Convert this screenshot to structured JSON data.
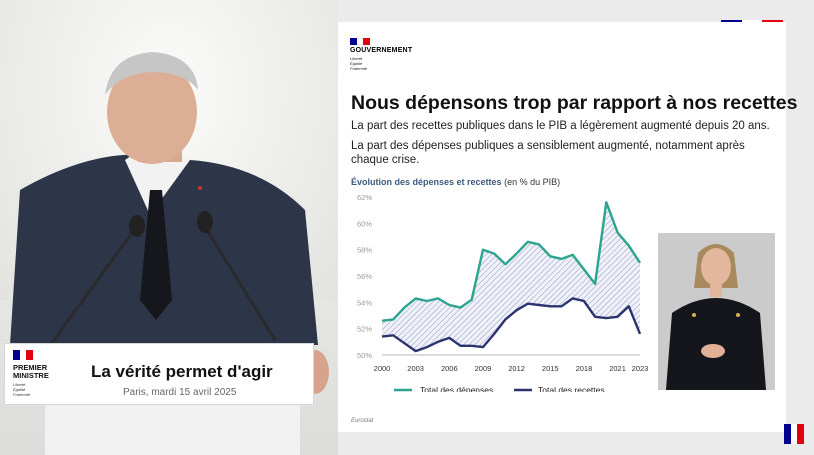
{
  "stage": {
    "podium": {
      "logo_title": "PREMIER\nMINISTRE",
      "logo_motto": "Liberté\nÉgalité\nFraternité",
      "headline": "La vérité permet d'agir",
      "subline": "Paris, mardi 15 avril 2025"
    }
  },
  "slide": {
    "gov_name": "GOUVERNEMENT",
    "gov_motto": "Liberté\nÉgalité\nFraternité",
    "title": "Nous dépensons trop par rapport à nos recettes",
    "paragraph1": "La part des recettes publiques dans le PIB a légèrement augmenté depuis 20 ans.",
    "paragraph2": "La part des dépenses publiques a sensiblement augmenté, notamment après chaque crise.",
    "chart_title_bold": "Évolution des dépenses et recettes",
    "chart_title_unit": "(en % du PIB)",
    "source": "Eurostat"
  },
  "colors": {
    "depenses": "#2ba58f",
    "recettes": "#2c3470",
    "hatch": "#4a5aa8",
    "flag_blue": "#000091",
    "flag_red": "#e1000f",
    "title_blue": "#3d5a80"
  },
  "chart_data": {
    "type": "line",
    "title": "Évolution des dépenses et recettes (en % du PIB)",
    "x": [
      2000,
      2001,
      2002,
      2003,
      2004,
      2005,
      2006,
      2007,
      2008,
      2009,
      2010,
      2011,
      2012,
      2013,
      2014,
      2015,
      2016,
      2017,
      2018,
      2019,
      2020,
      2021,
      2022,
      2023
    ],
    "xticks": [
      "2000",
      "2003",
      "2006",
      "2009",
      "2012",
      "2015",
      "2018",
      "2021",
      "2023"
    ],
    "yticks": [
      "50%",
      "52%",
      "54%",
      "56%",
      "58%",
      "60%",
      "62%"
    ],
    "ylim": [
      50,
      62
    ],
    "series": [
      {
        "name": "Total des dépenses",
        "values": [
          52.6,
          52.7,
          53.6,
          54.3,
          54.1,
          54.3,
          53.8,
          53.6,
          54.2,
          58.0,
          57.7,
          56.9,
          57.7,
          58.6,
          58.4,
          57.5,
          57.3,
          57.6,
          56.5,
          55.4,
          61.6,
          59.3,
          58.3,
          57.0
        ]
      },
      {
        "name": "Total des recettes",
        "values": [
          51.4,
          51.5,
          50.9,
          50.3,
          50.6,
          51.0,
          51.3,
          50.7,
          50.7,
          50.6,
          51.6,
          52.7,
          53.4,
          53.9,
          53.8,
          53.7,
          53.7,
          54.3,
          54.1,
          52.9,
          52.8,
          52.9,
          53.7,
          51.6
        ]
      }
    ],
    "legend": "bottom",
    "grid": false
  }
}
